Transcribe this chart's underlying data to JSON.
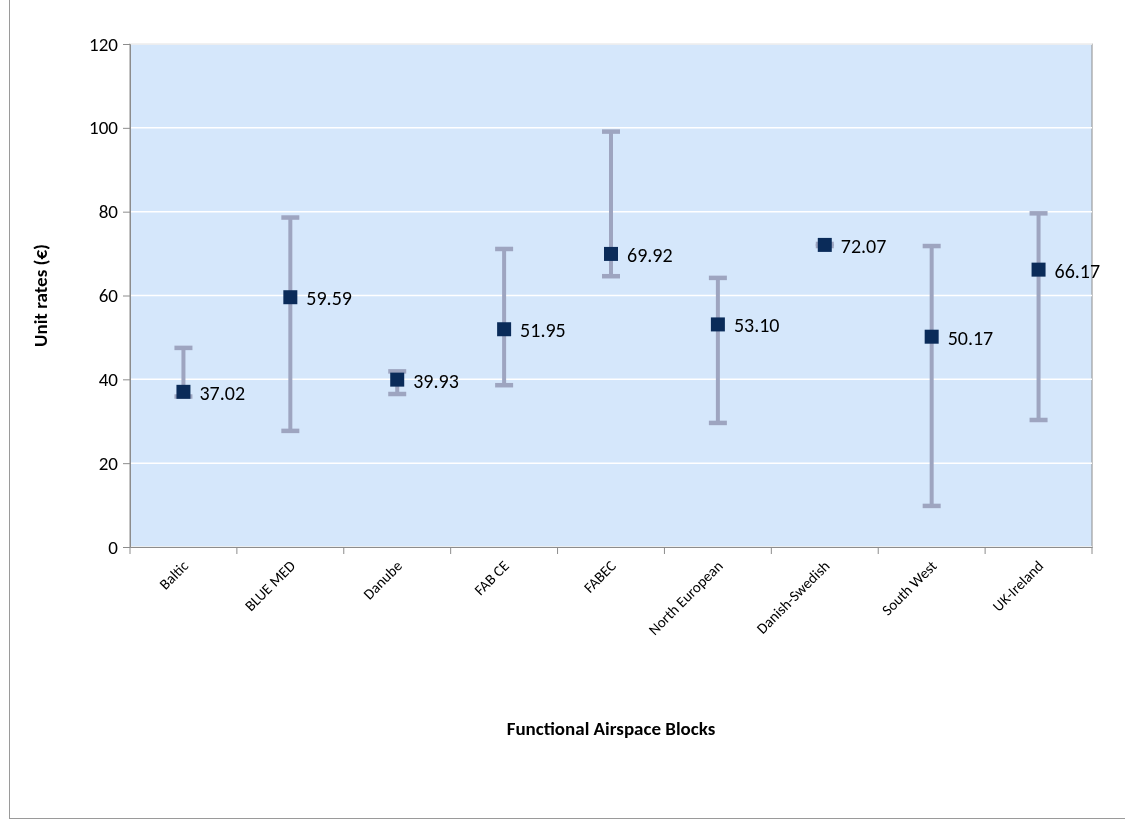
{
  "chart_data": {
    "type": "scatter",
    "xlabel": "Functional Airspace Blocks",
    "ylabel": "Unit rates (€)",
    "categories": [
      "Baltic",
      "BLUE MED",
      "Danube",
      "FAB CE",
      "FABEC",
      "North European",
      "Danish-Swedish",
      "South West",
      "UK-Ireland"
    ],
    "values": [
      37.02,
      59.59,
      39.93,
      51.95,
      69.92,
      53.1,
      72.07,
      50.17,
      66.17
    ],
    "errors": [
      [
        35.9,
        47.5
      ],
      [
        27.7,
        78.6
      ],
      [
        36.5,
        41.9
      ],
      [
        38.6,
        71.1
      ],
      [
        64.6,
        99.1
      ],
      [
        29.6,
        64.2
      ],
      [
        71.8,
        72.3
      ],
      [
        9.8,
        71.8
      ],
      [
        30.3,
        79.6
      ]
    ],
    "value_labels": [
      "37.02",
      "59.59",
      "39.93",
      "51.95",
      "69.92",
      "53.10",
      "72.07",
      "50.17",
      "66.17"
    ],
    "color": "#0a2b59",
    "marker": "square",
    "ylim": [
      0,
      120
    ],
    "yticks": [
      0,
      20,
      40,
      60,
      80,
      100,
      120
    ],
    "grid": "y"
  }
}
